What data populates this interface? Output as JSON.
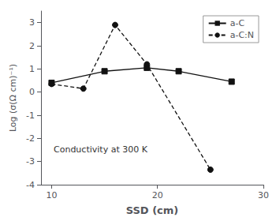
{
  "chart_data": {
    "type": "line",
    "xlabel": "SSD (cm)",
    "ylabel": "Log (σ(Ω cm)⁻¹)",
    "annotation": "Conductivity at 300 K",
    "series": [
      {
        "name": "a-C",
        "color": "#111111",
        "marker": "square",
        "line_style": "solid",
        "x": [
          10,
          15,
          19,
          22,
          27
        ],
        "values": [
          0.4,
          0.9,
          1.05,
          0.9,
          0.45
        ]
      },
      {
        "name": "a-C:N",
        "color": "#111111",
        "marker": "circle",
        "line_style": "dashed",
        "x": [
          10,
          13,
          16,
          19,
          25
        ],
        "values": [
          0.35,
          0.15,
          2.9,
          1.2,
          -3.35
        ]
      }
    ],
    "xlim": [
      9,
      30
    ],
    "ylim": [
      -4,
      3.5
    ],
    "xticks": [
      10,
      20,
      30
    ],
    "yticks": [
      -4,
      -3,
      -2,
      -1,
      0,
      1,
      2,
      3
    ],
    "grid": false,
    "legend": "upper right"
  }
}
